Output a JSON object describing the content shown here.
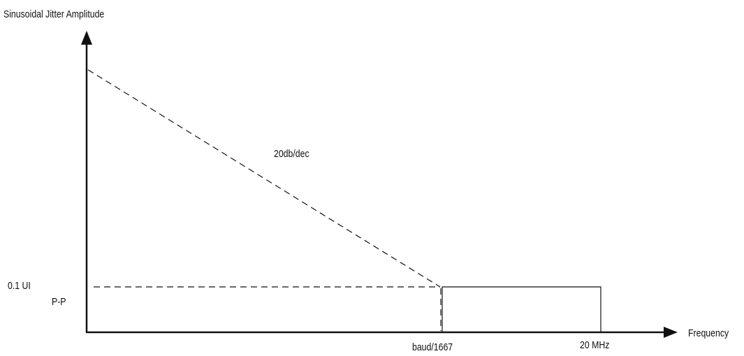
{
  "axes": {
    "y_label": "Sinusoidal Jitter Amplitude",
    "x_label": "Frequency"
  },
  "annotations": {
    "slope": "20db/dec",
    "level_value": "0.1 UI",
    "level_unit": "P-P"
  },
  "x_ticks": {
    "corner": "baud/1667",
    "upper": "20 MHz"
  },
  "colors": {
    "line": "#111111",
    "background": "#ffffff"
  }
}
